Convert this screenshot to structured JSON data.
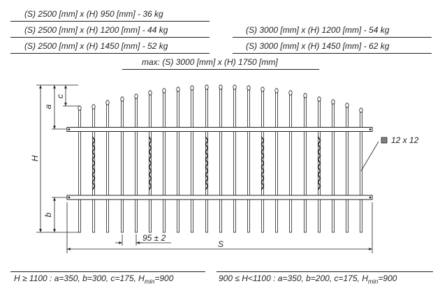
{
  "specs": {
    "left": [
      "(S) 2500 [mm] x (H) 950 [mm]   - 36 kg",
      "(S) 2500 [mm] x (H) 1200 [mm]  - 44 kg",
      "(S) 2500 [mm] x (H) 1450 [mm]  - 52 kg"
    ],
    "right": [
      "(S) 3000 [mm] x (H) 1200 [mm]  - 54 kg",
      "(S) 3000 [mm] x (H) 1450 [mm]  - 62 kg"
    ],
    "max": "max: (S) 3000 [mm] x (H) 1750 [mm]"
  },
  "drawing": {
    "dim_a": "a",
    "dim_c": "c",
    "dim_H": "H",
    "dim_b": "b",
    "dim_spacing": "95 ± 2",
    "dim_S": "S",
    "bar_label": "12 x 12",
    "bar_color": "#808080"
  },
  "notes": {
    "left": {
      "prefix": "H ≥ 1100 : a=350, b=300, c=175, H",
      "sub": "min",
      "suffix": "=900"
    },
    "right": {
      "prefix": "900 ≤ H<1100 : a=350, b=200, c=175, H",
      "sub": "min",
      "suffix": "=900"
    }
  }
}
